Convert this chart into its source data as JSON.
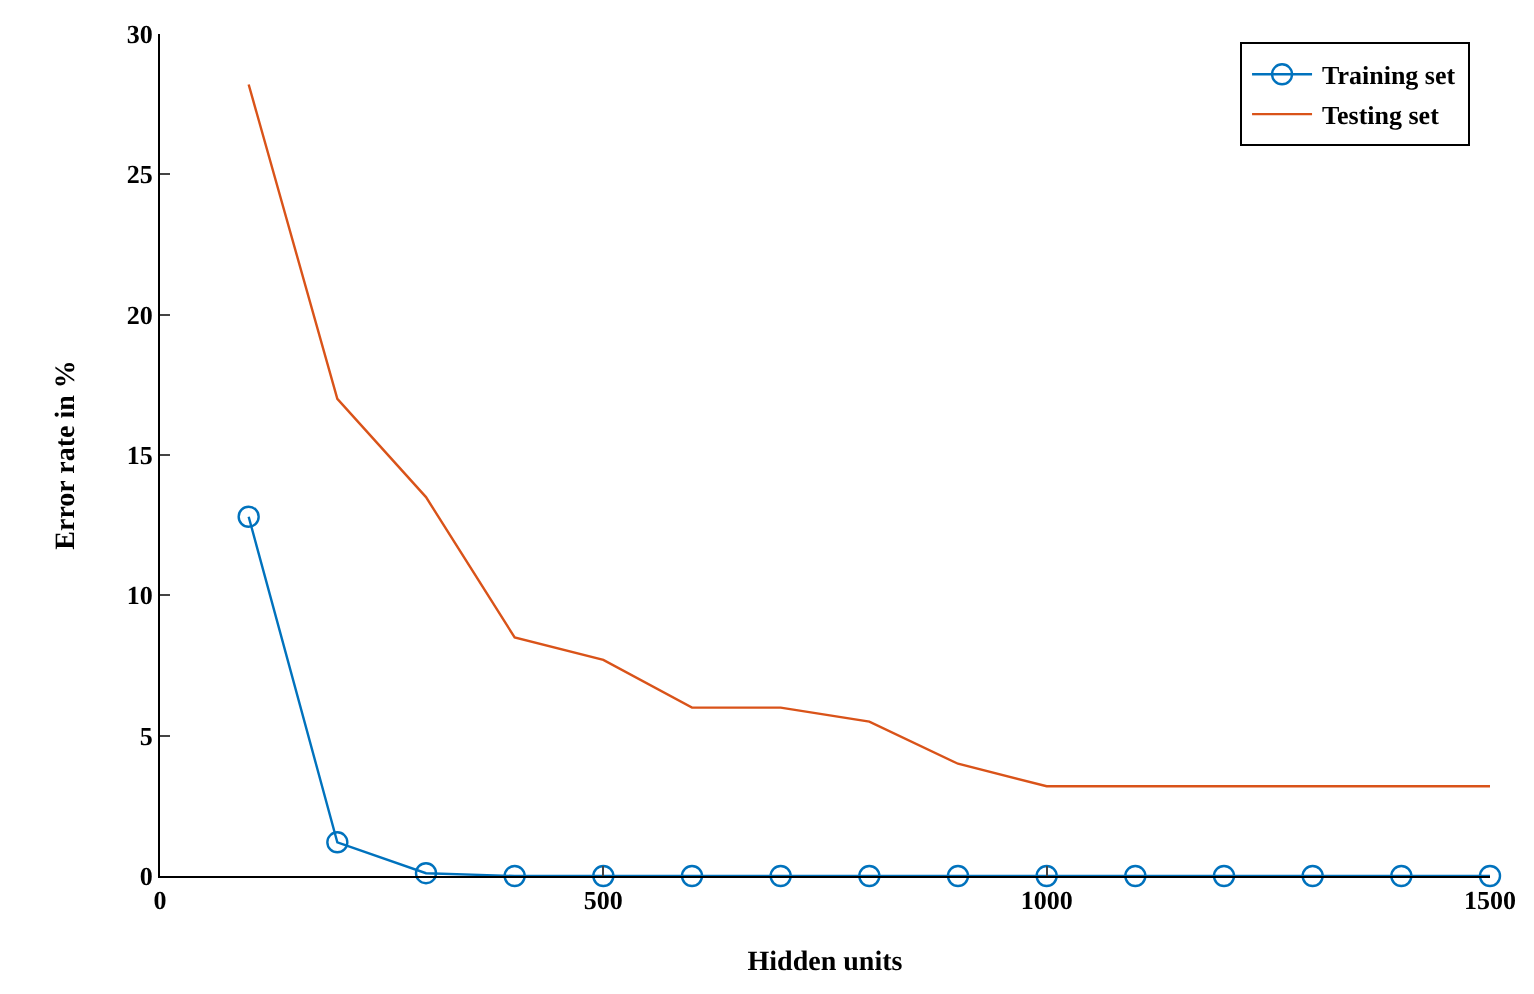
{
  "chart_data": {
    "type": "line",
    "xlabel": "Hidden units",
    "ylabel": "Error rate in %",
    "x": [
      100,
      200,
      300,
      400,
      500,
      600,
      700,
      800,
      900,
      1000,
      1100,
      1200,
      1300,
      1400,
      1500
    ],
    "series": [
      {
        "name": "Training set",
        "color": "#0072bd",
        "marker": "circle",
        "values": [
          12.8,
          1.2,
          0.1,
          0,
          0,
          0,
          0,
          0,
          0,
          0,
          0,
          0,
          0,
          0,
          0
        ]
      },
      {
        "name": "Testing set",
        "color": "#d95319",
        "marker": "none",
        "values": [
          28.2,
          17,
          13.5,
          8.5,
          7.7,
          6,
          6,
          5.5,
          4,
          3.2,
          3.2,
          3.2,
          3.2,
          3.2,
          3.2
        ]
      }
    ],
    "xlim": [
      0,
      1500
    ],
    "xticks": [
      0,
      500,
      1000,
      1500
    ],
    "ylim": [
      0,
      30
    ],
    "yticks": [
      0,
      5,
      10,
      15,
      20,
      25,
      30
    ],
    "grid": false,
    "legend": "top right",
    "line_style": "solid"
  }
}
